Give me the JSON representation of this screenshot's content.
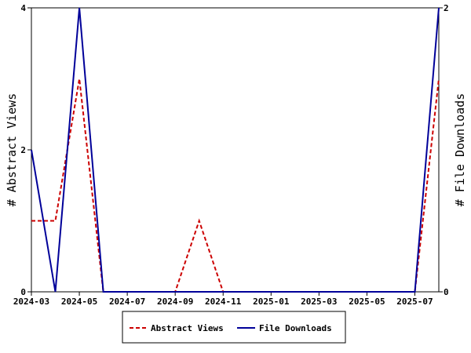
{
  "chart_data": {
    "type": "line",
    "title": "",
    "y_left": {
      "label": "# Abstract Views",
      "ylim": [
        0,
        4
      ],
      "ticks": [
        0,
        2,
        4
      ]
    },
    "y_right": {
      "label": "# File Downloads",
      "ylim": [
        0,
        2
      ],
      "ticks": [
        0,
        2
      ]
    },
    "x_ticks": [
      "2024-03",
      "2024-05",
      "2024-07",
      "2024-09",
      "2024-11",
      "2025-01",
      "2025-03",
      "2025-05",
      "2025-07"
    ],
    "x": [
      "2024-03",
      "2024-04",
      "2024-05",
      "2024-06",
      "2024-07",
      "2024-08",
      "2024-09",
      "2024-10",
      "2024-11",
      "2024-12",
      "2025-01",
      "2025-02",
      "2025-03",
      "2025-04",
      "2025-05",
      "2025-06",
      "2025-07",
      "2025-08"
    ],
    "series": [
      {
        "name": "Abstract Views",
        "axis": "left",
        "color": "#cc0000",
        "style": "dashed",
        "values": [
          1,
          1,
          3,
          0,
          0,
          0,
          0,
          1,
          0,
          0,
          0,
          0,
          0,
          0,
          0,
          0,
          0,
          3
        ]
      },
      {
        "name": "File Downloads",
        "axis": "right",
        "color": "#000099",
        "style": "solid",
        "values": [
          1,
          0,
          2,
          0,
          0,
          0,
          0,
          0,
          0,
          0,
          0,
          0,
          0,
          0,
          0,
          0,
          0,
          2
        ]
      }
    ],
    "legend_position": "bottom-center",
    "grid": false
  }
}
